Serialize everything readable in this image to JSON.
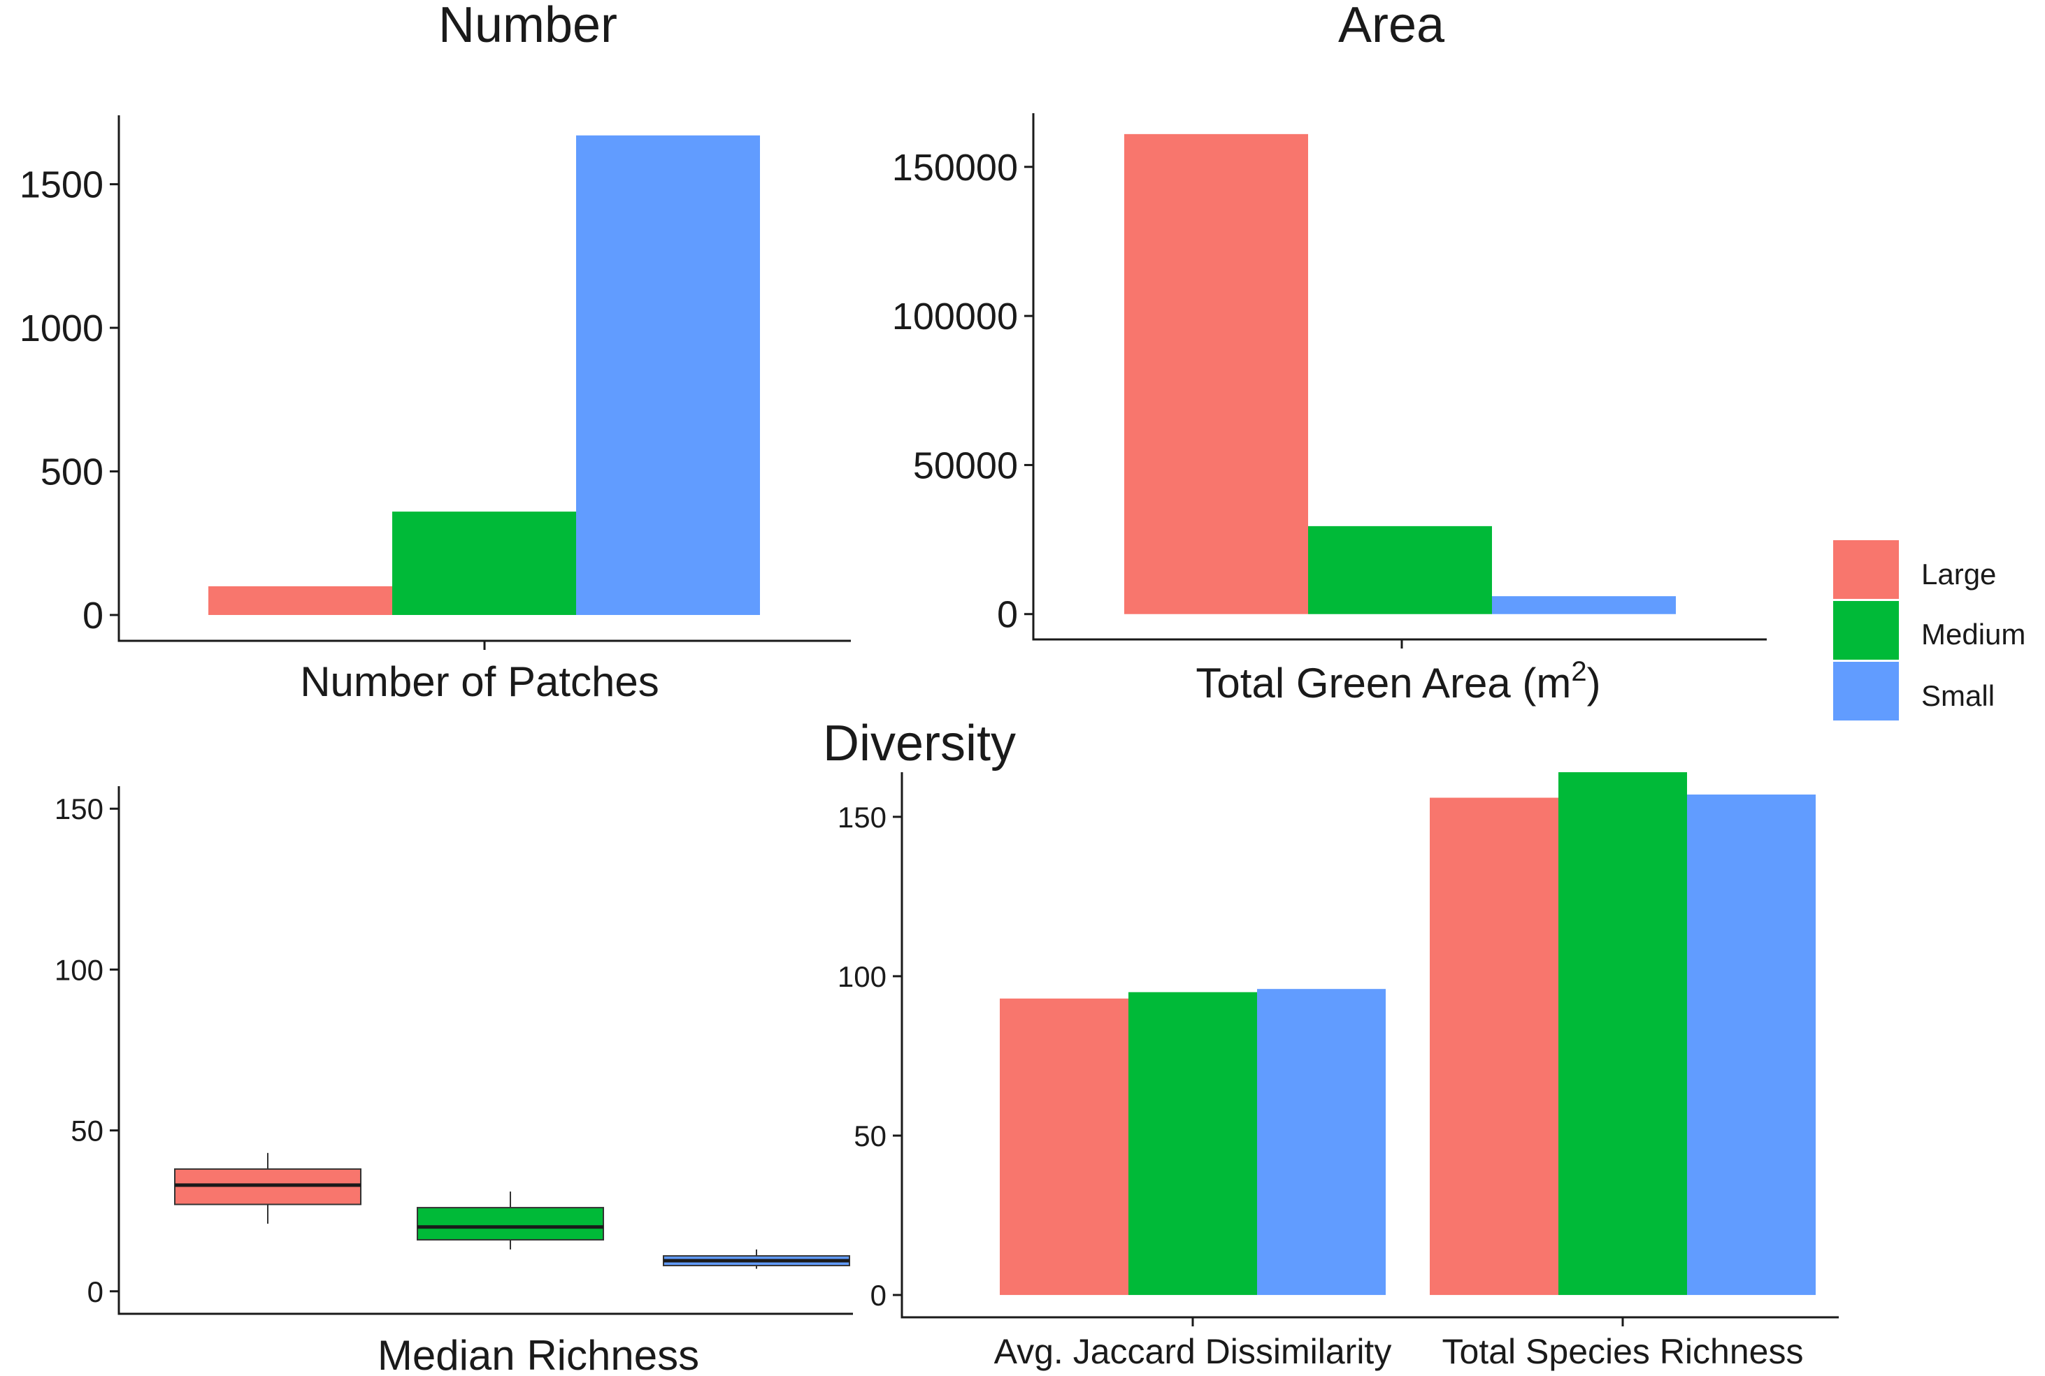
{
  "legend": {
    "items": [
      {
        "label": "Large",
        "color": "#F8766D"
      },
      {
        "label": "Medium",
        "color": "#00BA38"
      },
      {
        "label": "Small",
        "color": "#619CFF"
      }
    ]
  },
  "chart_data": [
    {
      "type": "bar",
      "title": "Number",
      "categories": [
        "Number of Patches"
      ],
      "xlabel": "Number of Patches",
      "ylabel": "",
      "ylim": [
        -90,
        1740
      ],
      "yticks": [
        0,
        500,
        1000,
        1500
      ],
      "series": [
        {
          "name": "Large",
          "values": [
            100
          ]
        },
        {
          "name": "Medium",
          "values": [
            360
          ]
        },
        {
          "name": "Small",
          "values": [
            1670
          ]
        }
      ]
    },
    {
      "type": "bar",
      "title": "Area",
      "categories": [
        "Total Green Area (m2)"
      ],
      "xlabel_main": "Total Green Area (m",
      "xlabel_sup": "2",
      "xlabel_end": ")",
      "ylabel": "",
      "ylim": [
        -8500,
        168000
      ],
      "yticks": [
        0,
        50000,
        100000,
        150000
      ],
      "series": [
        {
          "name": "Large",
          "values": [
            161000
          ]
        },
        {
          "name": "Medium",
          "values": [
            29500
          ]
        },
        {
          "name": "Small",
          "values": [
            6000
          ]
        }
      ]
    },
    {
      "type": "box",
      "title": "Diversity",
      "categories": [
        "Large",
        "Medium",
        "Small"
      ],
      "xlabel": "Median Richness",
      "ylabel": "",
      "ylim": [
        -7,
        157
      ],
      "yticks": [
        0,
        50,
        100,
        150
      ],
      "boxes": [
        {
          "name": "Large",
          "min": 21,
          "q1": 27,
          "median": 33,
          "q3": 38,
          "max": 43
        },
        {
          "name": "Medium",
          "min": 13,
          "q1": 16,
          "median": 20,
          "q3": 26,
          "max": 31
        },
        {
          "name": "Small",
          "min": 7,
          "q1": 8,
          "median": 9.5,
          "q3": 11,
          "max": 13
        }
      ]
    },
    {
      "type": "bar",
      "categories": [
        "Avg. Jaccard Dissimilarity",
        "Total Species Richness"
      ],
      "xlabel": "",
      "ylabel": "",
      "ylim": [
        -7,
        164
      ],
      "yticks": [
        0,
        50,
        100,
        150
      ],
      "series": [
        {
          "name": "Large",
          "values": [
            93,
            156
          ]
        },
        {
          "name": "Medium",
          "values": [
            95,
            164
          ]
        },
        {
          "name": "Small",
          "values": [
            96,
            157
          ]
        }
      ]
    }
  ]
}
